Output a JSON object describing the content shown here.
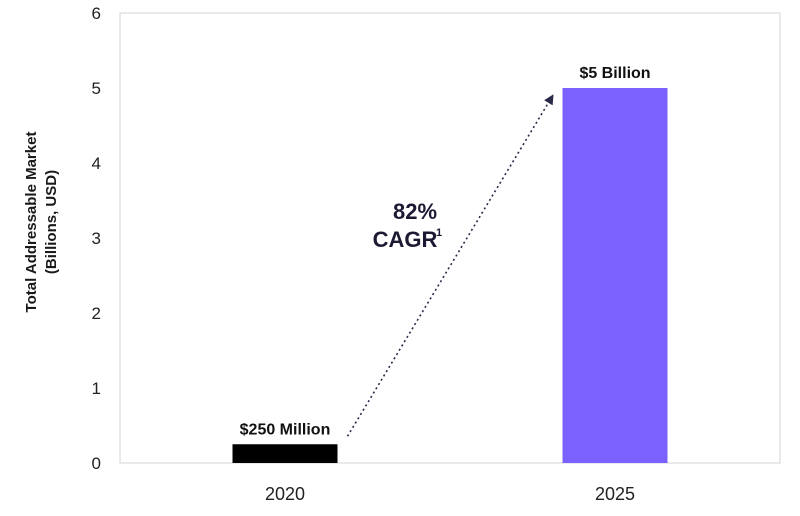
{
  "chart_data": {
    "type": "bar",
    "categories": [
      "2020",
      "2025"
    ],
    "values": [
      0.25,
      5
    ],
    "data_labels": [
      "$250 Million",
      "$5 Billion"
    ],
    "bar_colors": [
      "#000000",
      "#7b61ff"
    ],
    "ylabel_lines": [
      "Total Addressable Market",
      "(Billions, USD)"
    ],
    "ylim": [
      0,
      6
    ],
    "yticks": [
      "0",
      "1",
      "2",
      "3",
      "4",
      "5",
      "6"
    ],
    "grid": false,
    "annotation": {
      "line1": "82%",
      "line2": "CAGR",
      "superscript": "1",
      "arrow": "dotted arrow from 2020 bar to 2025 bar"
    }
  }
}
